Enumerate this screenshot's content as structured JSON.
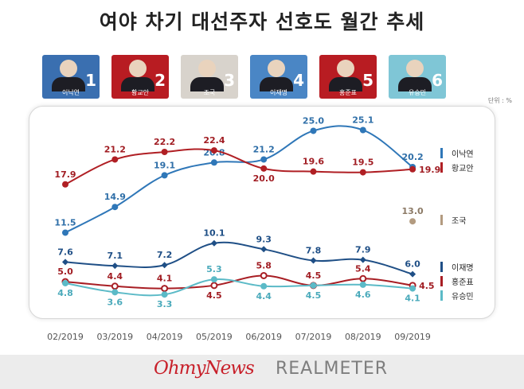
{
  "title": "여야 차기 대선주자 선호도 월간 추세",
  "unit": "단위 : %",
  "candidates": [
    {
      "name": "이낙연",
      "number": "1",
      "color": "#3a6fb0"
    },
    {
      "name": "황교안",
      "number": "2",
      "color": "#b81c22"
    },
    {
      "name": "조국",
      "number": "3",
      "color": "#d8d3cc"
    },
    {
      "name": "이재명",
      "number": "4",
      "color": "#4a86c5"
    },
    {
      "name": "홍준표",
      "number": "5",
      "color": "#b81c22"
    },
    {
      "name": "유승민",
      "number": "6",
      "color": "#7fc6d6"
    }
  ],
  "logos": {
    "ohmynews": "OhmyNews",
    "realmeter": "REALMETER"
  },
  "chart_data": {
    "type": "line",
    "x": [
      "02/2019",
      "03/2019",
      "04/2019",
      "05/2019",
      "06/2019",
      "07/2019",
      "08/2019",
      "09/2019"
    ],
    "series": [
      {
        "name": "이낙연",
        "color": "#2f77b8",
        "values": [
          11.5,
          14.9,
          19.1,
          20.8,
          21.2,
          25.0,
          25.1,
          20.2
        ]
      },
      {
        "name": "황교안",
        "color": "#b01f24",
        "values": [
          17.9,
          21.2,
          22.2,
          22.4,
          20.0,
          19.6,
          19.5,
          19.9
        ]
      },
      {
        "name": "조국",
        "color": "#b39b80",
        "values": [
          null,
          null,
          null,
          null,
          null,
          null,
          null,
          13.0
        ]
      },
      {
        "name": "이재명",
        "color": "#1f4f86",
        "values": [
          7.6,
          7.1,
          7.2,
          10.1,
          9.3,
          7.8,
          7.9,
          6.0
        ]
      },
      {
        "name": "홍준표",
        "color": "#a81e24",
        "values": [
          5.0,
          4.4,
          4.1,
          4.5,
          5.8,
          4.5,
          5.4,
          4.5
        ]
      },
      {
        "name": "유승민",
        "color": "#5bbac7",
        "values": [
          4.8,
          3.6,
          3.3,
          5.3,
          4.4,
          4.5,
          4.6,
          4.1
        ]
      }
    ],
    "labels": [
      [
        "11.5",
        "14.9",
        "19.1",
        "20.8",
        "21.2",
        "25.0",
        "25.1",
        "20.2"
      ],
      [
        "17.9",
        "21.2",
        "22.2",
        "22.4",
        "20.0",
        "19.6",
        "19.5",
        "19.9"
      ],
      [
        null,
        null,
        null,
        null,
        null,
        null,
        null,
        "13.0"
      ],
      [
        "7.6",
        "7.1",
        "7.2",
        "10.1",
        "9.3",
        "7.8",
        "7.9",
        "6.0"
      ],
      [
        "5.0",
        "4.4",
        "4.1",
        "4.5",
        "5.8",
        "4.5",
        "5.4",
        "4.5"
      ],
      [
        "4.8",
        "3.6",
        "3.3",
        "5.3",
        "4.4",
        "4.5",
        "4.6",
        "4.1"
      ]
    ],
    "ylim": [
      1,
      28
    ],
    "grid": false,
    "legend": "right"
  }
}
